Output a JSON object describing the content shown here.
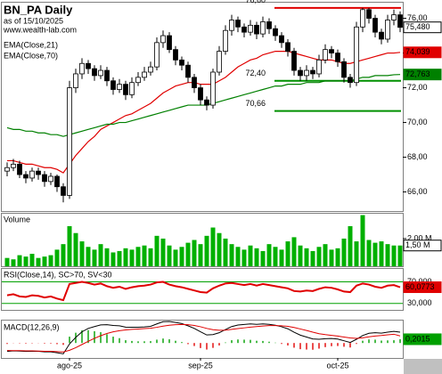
{
  "chart_data": [
    {
      "type": "candlestick",
      "title": "BN_PA Daily",
      "subtitle": "as of 15/10/2025",
      "source": "www.wealth-lab.com",
      "categories": [
        null,
        null,
        null,
        null,
        null,
        null,
        null,
        null,
        null,
        null,
        "ago-25",
        null,
        null,
        null,
        null,
        null,
        null,
        null,
        null,
        null,
        null,
        null,
        null,
        null,
        null,
        null,
        null,
        null,
        null,
        null,
        null,
        "sep-25",
        null,
        null,
        null,
        null,
        null,
        null,
        null,
        null,
        null,
        null,
        null,
        null,
        null,
        null,
        null,
        null,
        null,
        null,
        null,
        null,
        null,
        "oct-25",
        null,
        null,
        null,
        null,
        null,
        null,
        null,
        null,
        null,
        null
      ],
      "open": [
        67.2,
        67.4,
        67.6,
        67.0,
        66.8,
        67.2,
        67.0,
        66.6,
        66.9,
        66.3,
        65.8,
        72.0,
        72.8,
        73.4,
        73.1,
        72.7,
        73.0,
        72.4,
        71.9,
        72.2,
        71.6,
        72.3,
        72.6,
        72.9,
        73.2,
        74.6,
        75.0,
        74.2,
        73.6,
        73.3,
        72.6,
        72.0,
        71.3,
        71.0,
        72.9,
        74.1,
        75.3,
        75.9,
        75.5,
        75.2,
        75.6,
        75.1,
        75.8,
        75.4,
        75.0,
        74.6,
        74.1,
        73.0,
        72.7,
        73.0,
        72.8,
        73.6,
        74.2,
        74.0,
        73.5,
        72.6,
        72.3,
        75.5,
        76.5,
        76.0,
        75.2,
        74.8,
        75.9,
        76.2
      ],
      "high": [
        67.7,
        67.9,
        67.8,
        67.2,
        67.4,
        67.4,
        67.2,
        67.1,
        67.0,
        66.5,
        72.4,
        73.1,
        73.7,
        73.6,
        73.3,
        73.3,
        73.2,
        72.6,
        72.5,
        72.4,
        72.6,
        72.9,
        73.2,
        73.5,
        74.9,
        75.3,
        75.2,
        74.4,
        73.8,
        73.5,
        72.8,
        72.2,
        71.5,
        73.1,
        74.4,
        75.6,
        76.2,
        76.1,
        75.7,
        75.9,
        75.8,
        76.1,
        76.0,
        75.6,
        75.2,
        74.8,
        74.3,
        73.2,
        73.3,
        73.2,
        73.9,
        74.5,
        74.4,
        74.2,
        73.7,
        72.8,
        75.8,
        76.6,
        76.6,
        76.2,
        75.4,
        76.2,
        76.5,
        76.4
      ],
      "low": [
        66.9,
        67.2,
        66.8,
        66.5,
        66.6,
        66.7,
        66.3,
        66.4,
        66.0,
        65.4,
        65.6,
        71.7,
        72.5,
        72.8,
        72.4,
        72.5,
        72.1,
        71.6,
        71.7,
        71.3,
        71.4,
        72.1,
        72.4,
        72.7,
        73.0,
        74.3,
        74.0,
        73.3,
        73.0,
        72.3,
        71.7,
        71.0,
        70.7,
        70.8,
        72.7,
        73.9,
        75.0,
        75.2,
        74.9,
        75.0,
        74.8,
        74.9,
        75.1,
        74.7,
        74.3,
        73.8,
        72.7,
        72.4,
        72.4,
        72.5,
        72.6,
        73.4,
        73.7,
        73.2,
        72.3,
        72.0,
        72.1,
        75.2,
        75.7,
        74.9,
        74.5,
        74.6,
        75.6,
        75.2
      ],
      "close": [
        67.4,
        67.6,
        67.0,
        66.8,
        67.2,
        67.0,
        66.6,
        66.9,
        66.3,
        65.8,
        72.0,
        72.8,
        73.4,
        73.1,
        72.7,
        73.0,
        72.4,
        71.9,
        72.2,
        71.6,
        72.3,
        72.6,
        72.9,
        73.2,
        74.6,
        75.0,
        74.2,
        73.6,
        73.3,
        72.6,
        72.0,
        71.3,
        71.0,
        72.9,
        74.1,
        75.3,
        75.9,
        75.5,
        75.2,
        75.6,
        75.1,
        75.8,
        75.4,
        75.0,
        74.6,
        74.1,
        73.0,
        72.7,
        73.0,
        72.8,
        73.6,
        74.2,
        74.0,
        73.5,
        72.6,
        72.3,
        75.5,
        76.5,
        76.0,
        75.2,
        74.8,
        75.9,
        76.2,
        75.48
      ],
      "close_label": "75,480",
      "up_color": "#ffffff",
      "down_color": "#000000",
      "series": [
        {
          "name": "EMA(Close,21)",
          "color": "#e00000",
          "last_label": "74,039",
          "values": [
            67.8,
            67.8,
            67.7,
            67.6,
            67.6,
            67.5,
            67.4,
            67.4,
            67.3,
            67.1,
            67.6,
            68.1,
            68.5,
            68.9,
            69.2,
            69.6,
            69.8,
            70.0,
            70.2,
            70.4,
            70.5,
            70.7,
            70.9,
            71.1,
            71.4,
            71.7,
            71.9,
            72.1,
            72.2,
            72.3,
            72.3,
            72.2,
            72.2,
            72.2,
            72.4,
            72.6,
            72.9,
            73.2,
            73.4,
            73.6,
            73.7,
            73.9,
            74.0,
            74.1,
            74.1,
            74.1,
            74.0,
            73.9,
            73.8,
            73.7,
            73.6,
            73.6,
            73.6,
            73.5,
            73.4,
            73.4,
            73.5,
            73.6,
            73.7,
            73.8,
            73.9,
            74.0,
            74.0,
            74.039
          ]
        },
        {
          "name": "EMA(Close,70)",
          "color": "#008000",
          "last_label": "72,763",
          "values": [
            69.7,
            69.6,
            69.6,
            69.5,
            69.5,
            69.4,
            69.4,
            69.3,
            69.3,
            69.2,
            69.3,
            69.4,
            69.5,
            69.6,
            69.7,
            69.8,
            69.9,
            69.9,
            70.0,
            70.0,
            70.1,
            70.2,
            70.3,
            70.4,
            70.5,
            70.6,
            70.7,
            70.8,
            70.9,
            71.0,
            71.0,
            71.0,
            71.0,
            71.1,
            71.2,
            71.3,
            71.4,
            71.5,
            71.6,
            71.7,
            71.8,
            71.9,
            72.0,
            72.1,
            72.1,
            72.2,
            72.2,
            72.2,
            72.3,
            72.3,
            72.3,
            72.4,
            72.4,
            72.4,
            72.4,
            72.4,
            72.5,
            72.6,
            72.6,
            72.7,
            72.7,
            72.7,
            72.75,
            72.763
          ]
        }
      ],
      "levels": [
        {
          "value": 76.6,
          "label": "76,60",
          "color": "#e00000"
        },
        {
          "value": 72.4,
          "label": "72,40",
          "color": "#009000"
        },
        {
          "value": 70.66,
          "label": "70,66",
          "color": "#009000"
        }
      ],
      "ylim": [
        64.9,
        76.9
      ],
      "yticks": [
        {
          "value": 66,
          "label": "66,00"
        },
        {
          "value": 68,
          "label": "68,00"
        },
        {
          "value": 70,
          "label": "70,00"
        },
        {
          "value": 72,
          "label": "72,00"
        },
        {
          "value": 74,
          "label": "74,00"
        },
        {
          "value": 76,
          "label": "76,00"
        }
      ]
    },
    {
      "type": "bar",
      "title": "Volume",
      "color": "#00b000",
      "last_label": "1,50 M",
      "values": [
        600000,
        500000,
        800000,
        700000,
        900000,
        600000,
        700000,
        800000,
        1200000,
        1600000,
        2900000,
        2400000,
        1800000,
        1400000,
        1200000,
        1600000,
        1300000,
        1000000,
        1100000,
        1300000,
        1200000,
        1400000,
        1500000,
        1300000,
        2200000,
        2000000,
        1500000,
        1200000,
        1400000,
        1700000,
        1900000,
        1600000,
        2200000,
        2800000,
        2400000,
        2000000,
        1600000,
        1400000,
        1200000,
        1500000,
        1300000,
        1100000,
        1600000,
        1400000,
        1200000,
        1800000,
        2100000,
        1500000,
        1300000,
        1100000,
        1400000,
        1600000,
        1200000,
        1300000,
        2000000,
        2900000,
        1800000,
        3700000,
        1900000,
        1700000,
        1800000,
        1600000,
        1500000,
        1500000
      ],
      "ylim": [
        0,
        3800000
      ],
      "yticks": [
        {
          "value": 2000000,
          "label": "2,00 M"
        }
      ]
    },
    {
      "type": "line",
      "title": "RSI(Close,14), SC>70, SV<30",
      "color": "#e00000",
      "band_color": "#00a000",
      "last_label": "60,0773",
      "values": [
        45,
        47,
        43,
        42,
        45,
        44,
        41,
        43,
        39,
        36,
        66,
        68,
        70,
        68,
        65,
        67,
        62,
        59,
        61,
        57,
        60,
        62,
        63,
        65,
        69,
        70,
        65,
        62,
        60,
        57,
        54,
        51,
        50,
        58,
        63,
        67,
        68,
        66,
        64,
        66,
        63,
        66,
        64,
        62,
        60,
        58,
        53,
        52,
        54,
        53,
        57,
        60,
        59,
        56,
        52,
        51,
        63,
        67,
        65,
        61,
        59,
        63,
        64,
        60.0773
      ],
      "ylim": [
        18,
        94
      ],
      "yticks": [
        {
          "value": 70,
          "label": "70,000"
        },
        {
          "value": 30,
          "label": "30,000"
        }
      ]
    },
    {
      "type": "macd",
      "title": "MACD(12,26,9)",
      "macd_color": "#000000",
      "signal_color": "#e00000",
      "hist_colors": [
        "#00a000",
        "#e00000"
      ],
      "last_label": "0,2015",
      "macd": [
        -0.45,
        -0.42,
        -0.43,
        -0.45,
        -0.44,
        -0.44,
        -0.47,
        -0.47,
        -0.52,
        -0.58,
        -0.05,
        0.3,
        0.6,
        0.78,
        0.88,
        0.97,
        0.98,
        0.94,
        0.92,
        0.85,
        0.84,
        0.84,
        0.86,
        0.89,
        1.02,
        1.14,
        1.15,
        1.1,
        1.04,
        0.92,
        0.78,
        0.6,
        0.43,
        0.45,
        0.55,
        0.72,
        0.88,
        0.96,
        0.99,
        1.02,
        1.0,
        1.02,
        1.0,
        0.95,
        0.87,
        0.76,
        0.58,
        0.42,
        0.32,
        0.22,
        0.2,
        0.23,
        0.24,
        0.21,
        0.12,
        0.03,
        0.2,
        0.4,
        0.52,
        0.55,
        0.53,
        0.58,
        0.62,
        0.58
      ],
      "signal": [
        -0.4,
        -0.41,
        -0.41,
        -0.42,
        -0.42,
        -0.43,
        -0.44,
        -0.44,
        -0.46,
        -0.48,
        -0.39,
        -0.25,
        -0.08,
        0.09,
        0.25,
        0.39,
        0.51,
        0.6,
        0.66,
        0.7,
        0.73,
        0.75,
        0.77,
        0.79,
        0.84,
        0.9,
        0.95,
        0.98,
        0.99,
        0.98,
        0.94,
        0.87,
        0.78,
        0.71,
        0.68,
        0.69,
        0.73,
        0.77,
        0.81,
        0.85,
        0.88,
        0.91,
        0.93,
        0.93,
        0.92,
        0.89,
        0.83,
        0.75,
        0.67,
        0.58,
        0.5,
        0.45,
        0.41,
        0.37,
        0.32,
        0.27,
        0.25,
        0.28,
        0.33,
        0.37,
        0.4,
        0.44,
        0.47,
        0.3785
      ],
      "histogram": [
        -0.05,
        -0.01,
        -0.02,
        -0.03,
        -0.02,
        -0.01,
        -0.03,
        -0.03,
        -0.06,
        -0.1,
        0.34,
        0.55,
        0.68,
        0.69,
        0.63,
        0.58,
        0.47,
        0.34,
        0.26,
        0.15,
        0.11,
        0.09,
        0.09,
        0.1,
        0.18,
        0.24,
        0.2,
        0.12,
        0.05,
        -0.06,
        -0.16,
        -0.27,
        -0.35,
        -0.26,
        -0.13,
        0.03,
        0.15,
        0.19,
        0.18,
        0.17,
        0.12,
        0.11,
        0.07,
        0.02,
        -0.05,
        -0.13,
        -0.25,
        -0.33,
        -0.35,
        -0.36,
        -0.3,
        -0.22,
        -0.17,
        -0.16,
        -0.2,
        -0.24,
        -0.05,
        0.12,
        0.19,
        0.18,
        0.13,
        0.14,
        0.15,
        0.2015
      ],
      "ylim": [
        -0.8,
        1.2
      ]
    }
  ]
}
